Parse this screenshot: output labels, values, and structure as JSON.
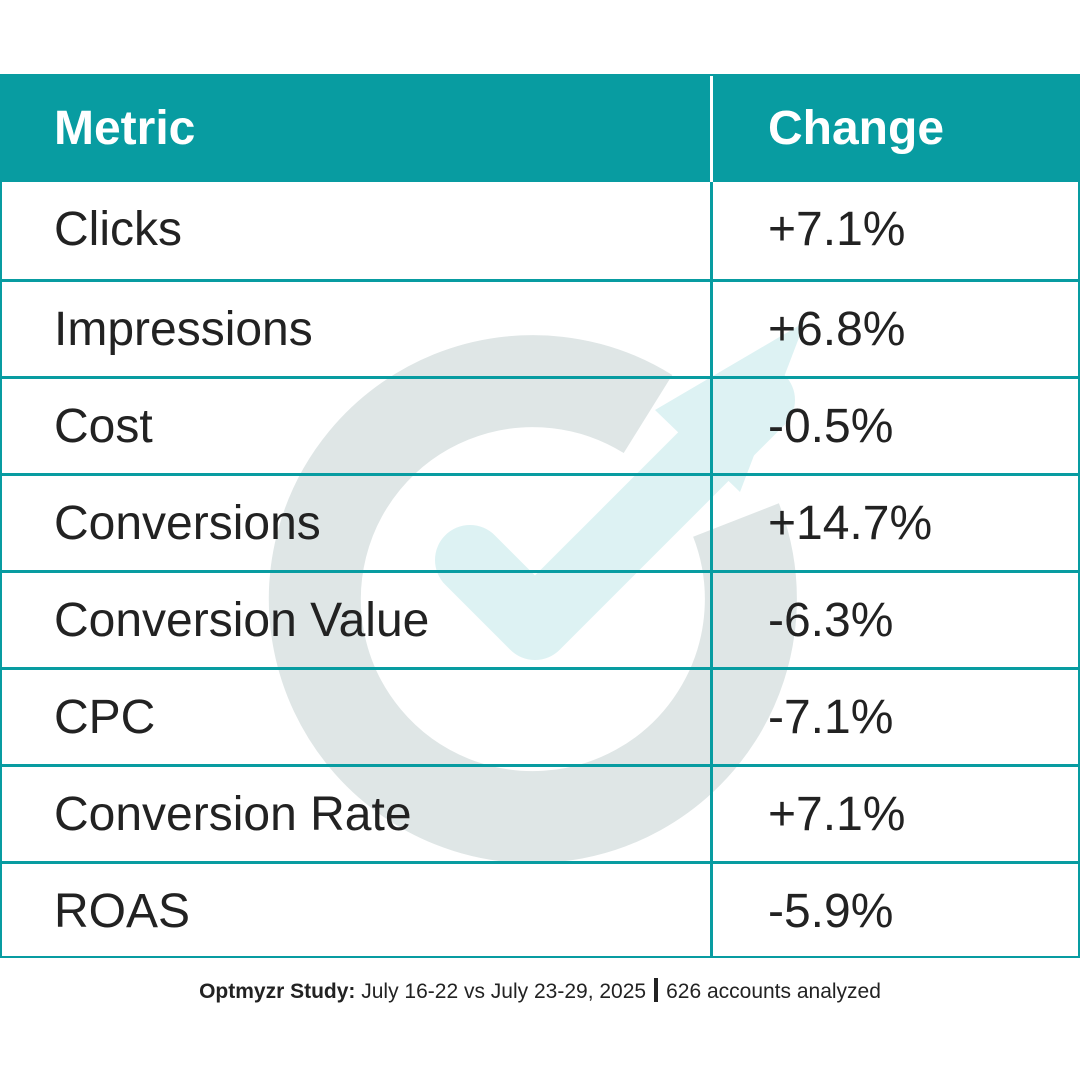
{
  "table": {
    "headers": {
      "metric": "Metric",
      "change": "Change"
    },
    "rows": [
      {
        "metric": "Clicks",
        "change": "+7.1%"
      },
      {
        "metric": "Impressions",
        "change": "+6.8%"
      },
      {
        "metric": "Cost",
        "change": "-0.5%"
      },
      {
        "metric": "Conversions",
        "change": "+14.7%"
      },
      {
        "metric": "Conversion Value",
        "change": "-6.3%"
      },
      {
        "metric": "CPC",
        "change": "-7.1%"
      },
      {
        "metric": "Conversion Rate",
        "change": "+7.1%"
      },
      {
        "metric": "ROAS",
        "change": "-5.9%"
      }
    ]
  },
  "footer": {
    "brand": "Optmyzr Study:",
    "period": "July 16-22 vs July 23-29, 2025",
    "accounts": "626 accounts analyzed"
  },
  "colors": {
    "accent": "#089ca1",
    "text": "#222222",
    "watermark_ring": "#dfe6e6",
    "watermark_check": "#ddf2f3"
  },
  "watermark": {
    "icon": "optmyzr-logo-icon"
  }
}
